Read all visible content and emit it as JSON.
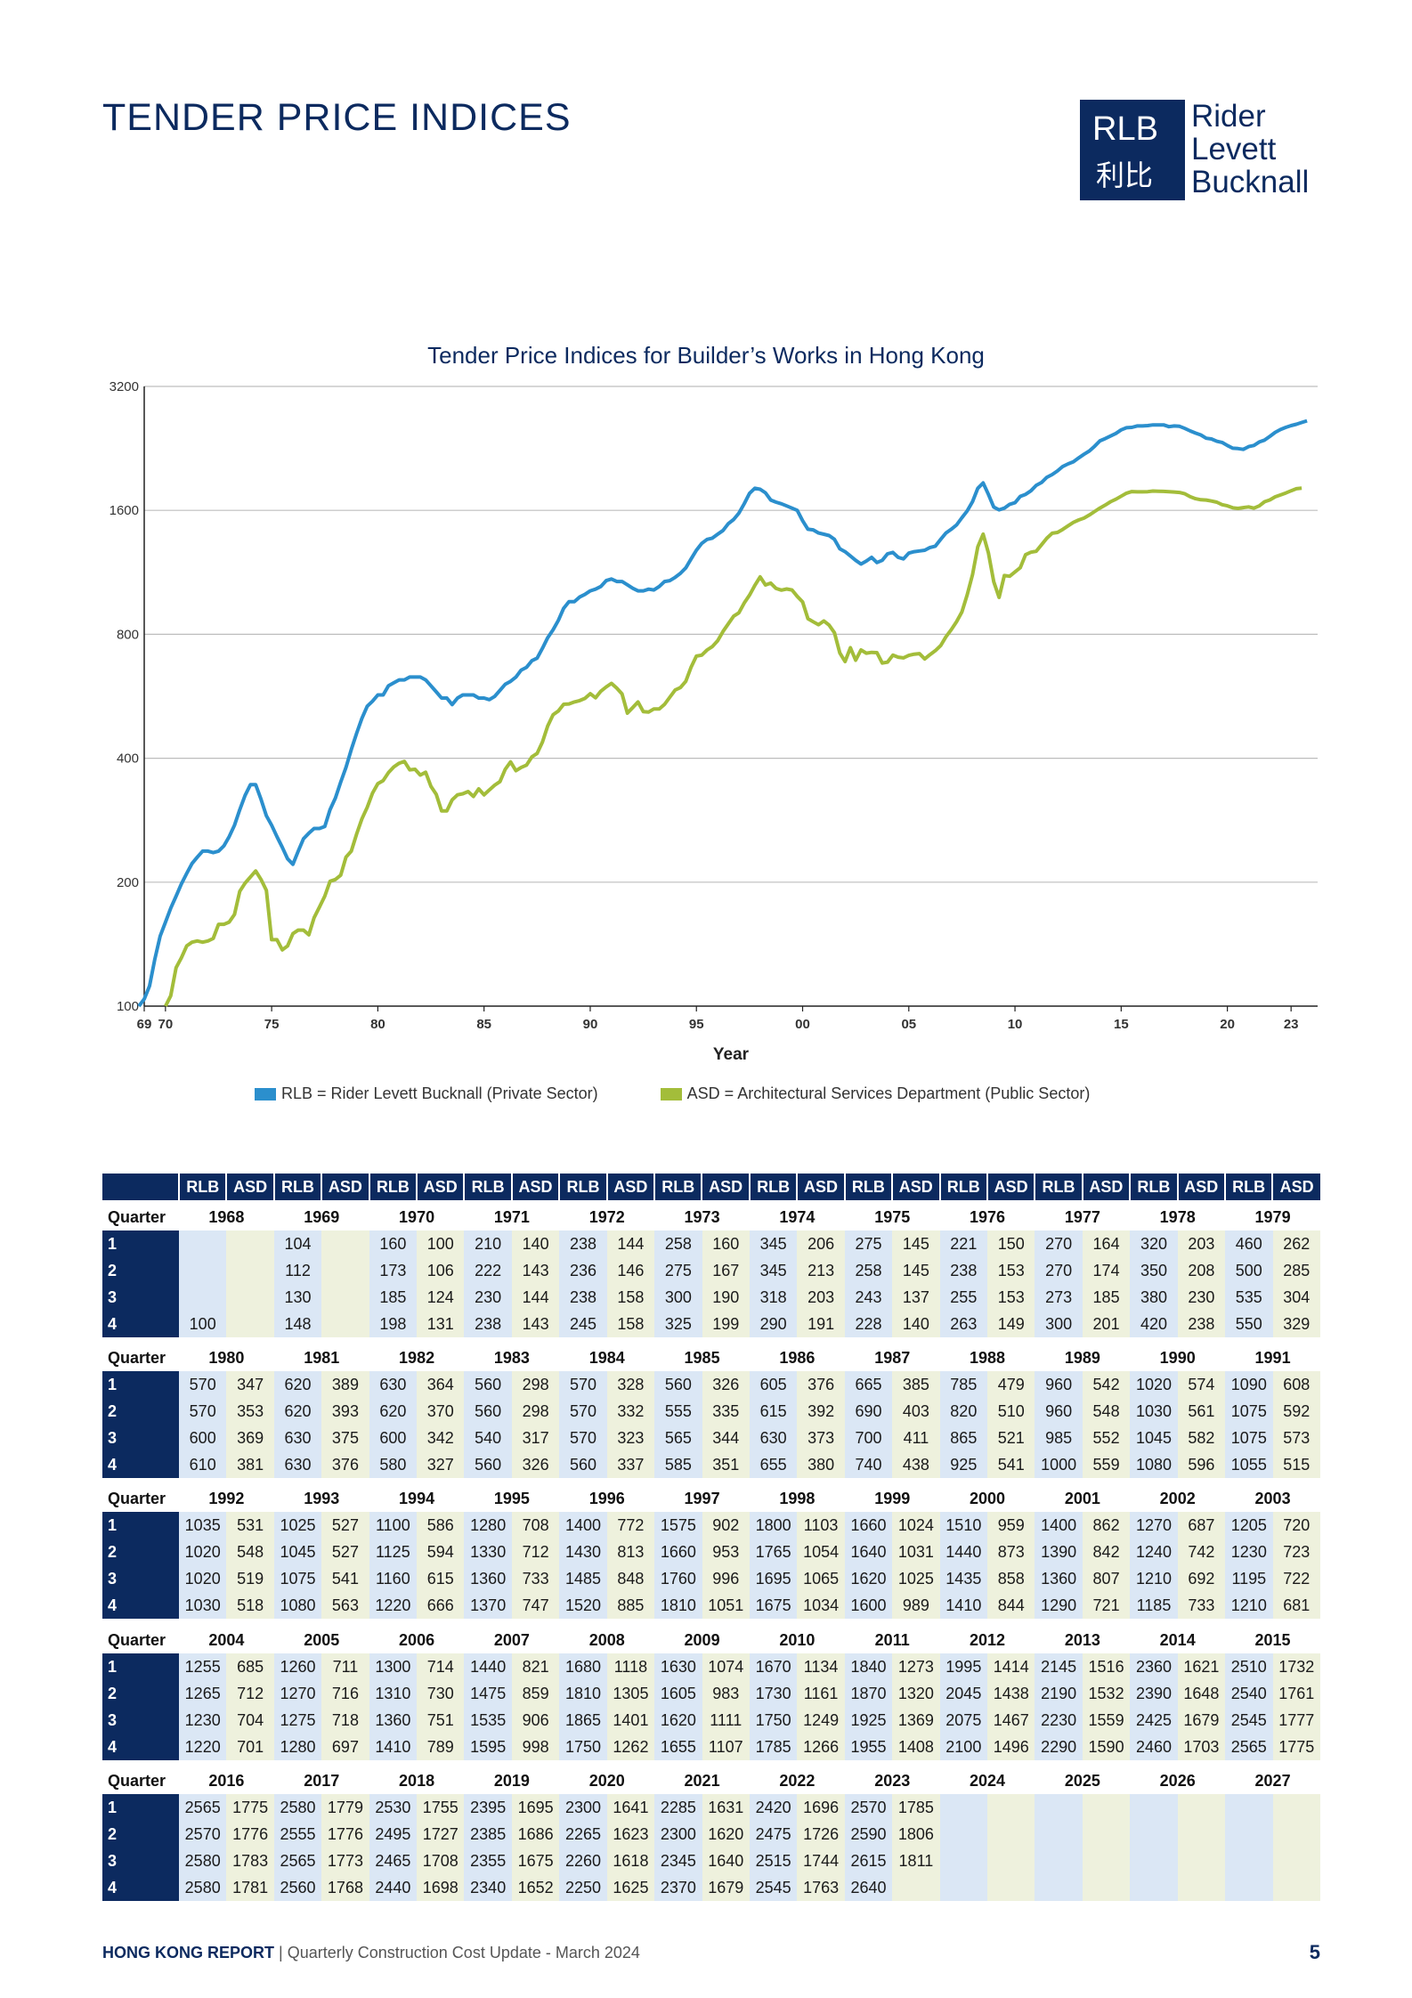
{
  "page": {
    "title": "TENDER PRICE INDICES"
  },
  "logo": {
    "abbr": "RLB",
    "cn": "利比",
    "words": [
      "Rider",
      "Levett",
      "Bucknall"
    ]
  },
  "chart_data": {
    "type": "line",
    "title": "Tender Price Indices for Builder’s Works in Hong Kong",
    "xlabel": "Year",
    "ylabel": "",
    "y_scale": "log",
    "ylim": [
      100,
      3200
    ],
    "yticks": [
      100,
      200,
      400,
      800,
      1600,
      3200
    ],
    "xlim": [
      1969.0,
      2024.25
    ],
    "xticks": [
      {
        "x": 1969,
        "label": "69"
      },
      {
        "x": 1970,
        "label": "70"
      },
      {
        "x": 1975,
        "label": "75"
      },
      {
        "x": 1980,
        "label": "80"
      },
      {
        "x": 1985,
        "label": "85"
      },
      {
        "x": 1990,
        "label": "90"
      },
      {
        "x": 1995,
        "label": "95"
      },
      {
        "x": 2000,
        "label": "00"
      },
      {
        "x": 2005,
        "label": "05"
      },
      {
        "x": 2010,
        "label": "10"
      },
      {
        "x": 2015,
        "label": "15"
      },
      {
        "x": 2020,
        "label": "20"
      },
      {
        "x": 2023,
        "label": "23"
      }
    ],
    "grid": true,
    "legend_position": "bottom",
    "legend": [
      "RLB = Rider Levett Bucknall (Private Sector)",
      "ASD = Architectural Services Department (Public Sector)"
    ],
    "colors": {
      "RLB": "#2b8fcd",
      "ASD": "#a3bd3a"
    },
    "series_source": "table"
  },
  "table": {
    "col_header_rlb": "RLB",
    "col_header_asd": "ASD",
    "quarter_label": "Quarter",
    "quarter_labels": [
      "1",
      "2",
      "3",
      "4"
    ],
    "sections": [
      {
        "years": [
          "1968",
          "1969",
          "1970",
          "1971",
          "1972",
          "1973",
          "1974",
          "1975",
          "1976",
          "1977",
          "1978",
          "1979"
        ],
        "rows": [
          [
            "",
            "",
            "104",
            "",
            "160",
            "100",
            "210",
            "140",
            "238",
            "144",
            "258",
            "160",
            "345",
            "206",
            "275",
            "145",
            "221",
            "150",
            "270",
            "164",
            "320",
            "203",
            "460",
            "262"
          ],
          [
            "",
            "",
            "112",
            "",
            "173",
            "106",
            "222",
            "143",
            "236",
            "146",
            "275",
            "167",
            "345",
            "213",
            "258",
            "145",
            "238",
            "153",
            "270",
            "174",
            "350",
            "208",
            "500",
            "285"
          ],
          [
            "",
            "",
            "130",
            "",
            "185",
            "124",
            "230",
            "144",
            "238",
            "158",
            "300",
            "190",
            "318",
            "203",
            "243",
            "137",
            "255",
            "153",
            "273",
            "185",
            "380",
            "230",
            "535",
            "304"
          ],
          [
            "100",
            "",
            "148",
            "",
            "198",
            "131",
            "238",
            "143",
            "245",
            "158",
            "325",
            "199",
            "290",
            "191",
            "228",
            "140",
            "263",
            "149",
            "300",
            "201",
            "420",
            "238",
            "550",
            "329"
          ]
        ]
      },
      {
        "years": [
          "1980",
          "1981",
          "1982",
          "1983",
          "1984",
          "1985",
          "1986",
          "1987",
          "1988",
          "1989",
          "1990",
          "1991"
        ],
        "rows": [
          [
            "570",
            "347",
            "620",
            "389",
            "630",
            "364",
            "560",
            "298",
            "570",
            "328",
            "560",
            "326",
            "605",
            "376",
            "665",
            "385",
            "785",
            "479",
            "960",
            "542",
            "1020",
            "574",
            "1090",
            "608"
          ],
          [
            "570",
            "353",
            "620",
            "393",
            "620",
            "370",
            "560",
            "298",
            "570",
            "332",
            "555",
            "335",
            "615",
            "392",
            "690",
            "403",
            "820",
            "510",
            "960",
            "548",
            "1030",
            "561",
            "1075",
            "592"
          ],
          [
            "600",
            "369",
            "630",
            "375",
            "600",
            "342",
            "540",
            "317",
            "570",
            "323",
            "565",
            "344",
            "630",
            "373",
            "700",
            "411",
            "865",
            "521",
            "985",
            "552",
            "1045",
            "582",
            "1075",
            "573"
          ],
          [
            "610",
            "381",
            "630",
            "376",
            "580",
            "327",
            "560",
            "326",
            "560",
            "337",
            "585",
            "351",
            "655",
            "380",
            "740",
            "438",
            "925",
            "541",
            "1000",
            "559",
            "1080",
            "596",
            "1055",
            "515"
          ]
        ]
      },
      {
        "years": [
          "1992",
          "1993",
          "1994",
          "1995",
          "1996",
          "1997",
          "1998",
          "1999",
          "2000",
          "2001",
          "2002",
          "2003"
        ],
        "rows": [
          [
            "1035",
            "531",
            "1025",
            "527",
            "1100",
            "586",
            "1280",
            "708",
            "1400",
            "772",
            "1575",
            "902",
            "1800",
            "1103",
            "1660",
            "1024",
            "1510",
            "959",
            "1400",
            "862",
            "1270",
            "687",
            "1205",
            "720"
          ],
          [
            "1020",
            "548",
            "1045",
            "527",
            "1125",
            "594",
            "1330",
            "712",
            "1430",
            "813",
            "1660",
            "953",
            "1765",
            "1054",
            "1640",
            "1031",
            "1440",
            "873",
            "1390",
            "842",
            "1240",
            "742",
            "1230",
            "723"
          ],
          [
            "1020",
            "519",
            "1075",
            "541",
            "1160",
            "615",
            "1360",
            "733",
            "1485",
            "848",
            "1760",
            "996",
            "1695",
            "1065",
            "1620",
            "1025",
            "1435",
            "858",
            "1360",
            "807",
            "1210",
            "692",
            "1195",
            "722"
          ],
          [
            "1030",
            "518",
            "1080",
            "563",
            "1220",
            "666",
            "1370",
            "747",
            "1520",
            "885",
            "1810",
            "1051",
            "1675",
            "1034",
            "1600",
            "989",
            "1410",
            "844",
            "1290",
            "721",
            "1185",
            "733",
            "1210",
            "681"
          ]
        ]
      },
      {
        "years": [
          "2004",
          "2005",
          "2006",
          "2007",
          "2008",
          "2009",
          "2010",
          "2011",
          "2012",
          "2013",
          "2014",
          "2015"
        ],
        "rows": [
          [
            "1255",
            "685",
            "1260",
            "711",
            "1300",
            "714",
            "1440",
            "821",
            "1680",
            "1118",
            "1630",
            "1074",
            "1670",
            "1134",
            "1840",
            "1273",
            "1995",
            "1414",
            "2145",
            "1516",
            "2360",
            "1621",
            "2510",
            "1732"
          ],
          [
            "1265",
            "712",
            "1270",
            "716",
            "1310",
            "730",
            "1475",
            "859",
            "1810",
            "1305",
            "1605",
            "983",
            "1730",
            "1161",
            "1870",
            "1320",
            "2045",
            "1438",
            "2190",
            "1532",
            "2390",
            "1648",
            "2540",
            "1761"
          ],
          [
            "1230",
            "704",
            "1275",
            "718",
            "1360",
            "751",
            "1535",
            "906",
            "1865",
            "1401",
            "1620",
            "1111",
            "1750",
            "1249",
            "1925",
            "1369",
            "2075",
            "1467",
            "2230",
            "1559",
            "2425",
            "1679",
            "2545",
            "1777"
          ],
          [
            "1220",
            "701",
            "1280",
            "697",
            "1410",
            "789",
            "1595",
            "998",
            "1750",
            "1262",
            "1655",
            "1107",
            "1785",
            "1266",
            "1955",
            "1408",
            "2100",
            "1496",
            "2290",
            "1590",
            "2460",
            "1703",
            "2565",
            "1775"
          ]
        ]
      },
      {
        "years": [
          "2016",
          "2017",
          "2018",
          "2019",
          "2020",
          "2021",
          "2022",
          "2023",
          "2024",
          "2025",
          "2026",
          "2027"
        ],
        "rows": [
          [
            "2565",
            "1775",
            "2580",
            "1779",
            "2530",
            "1755",
            "2395",
            "1695",
            "2300",
            "1641",
            "2285",
            "1631",
            "2420",
            "1696",
            "2570",
            "1785",
            "",
            "",
            "",
            "",
            "",
            "",
            "",
            ""
          ],
          [
            "2570",
            "1776",
            "2555",
            "1776",
            "2495",
            "1727",
            "2385",
            "1686",
            "2265",
            "1623",
            "2300",
            "1620",
            "2475",
            "1726",
            "2590",
            "1806",
            "",
            "",
            "",
            "",
            "",
            "",
            "",
            ""
          ],
          [
            "2580",
            "1783",
            "2565",
            "1773",
            "2465",
            "1708",
            "2355",
            "1675",
            "2260",
            "1618",
            "2345",
            "1640",
            "2515",
            "1744",
            "2615",
            "1811",
            "",
            "",
            "",
            "",
            "",
            "",
            "",
            ""
          ],
          [
            "2580",
            "1781",
            "2560",
            "1768",
            "2440",
            "1698",
            "2340",
            "1652",
            "2250",
            "1625",
            "2370",
            "1679",
            "2545",
            "1763",
            "2640",
            "",
            "",
            "",
            "",
            "",
            "",
            "",
            "",
            ""
          ]
        ]
      }
    ]
  },
  "footer": {
    "report": "HONG KONG REPORT",
    "separator": "|",
    "subtitle": "Quarterly Construction Cost Update - March 2024",
    "page": "5"
  }
}
